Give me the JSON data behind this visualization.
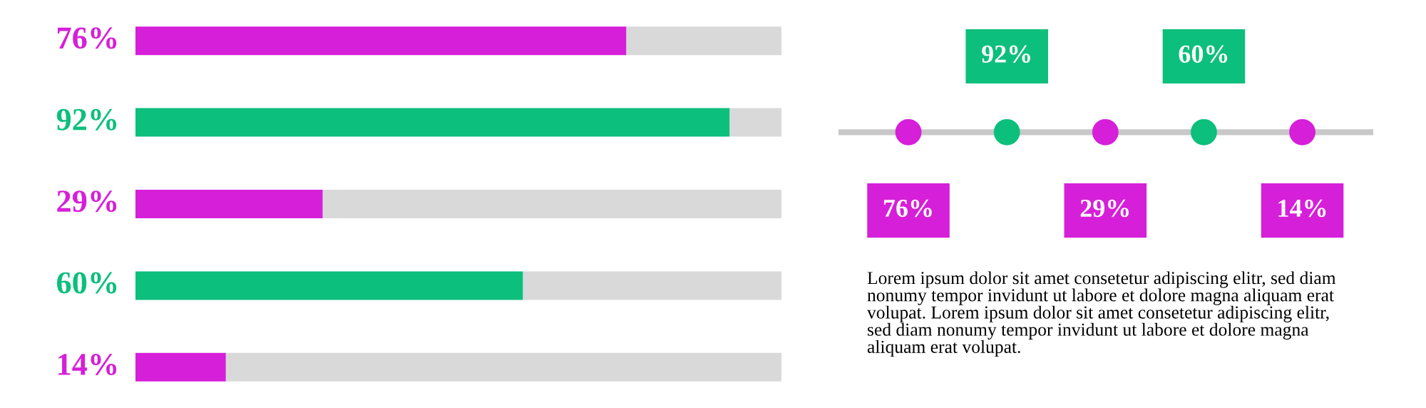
{
  "chart_data": [
    {
      "type": "bar",
      "orientation": "horizontal",
      "stacked": true,
      "xlim": [
        0,
        100
      ],
      "categories": [
        null,
        null,
        null,
        null,
        null
      ],
      "series": [
        {
          "colors": [
            "#d61fd9",
            "#0dbf7c",
            "#d61fd9",
            "#0dbf7c",
            "#d61fd9"
          ],
          "values": [
            76,
            92,
            29,
            60,
            14
          ],
          "value_labels": [
            "76%",
            "92%",
            "29%",
            "60%",
            "14%"
          ]
        },
        {
          "color": "#d9d9d9",
          "values": [
            24,
            8,
            71,
            40,
            86
          ]
        }
      ]
    },
    {
      "type": "other",
      "colors": [
        "#d61fd9",
        "#0dbf7c",
        "#d61fd9",
        "#0dbf7c",
        "#d61fd9"
      ],
      "annotations": [
        "76%",
        "92%",
        "29%",
        "60%",
        "14%",
        "Lorem ipsum dolor sit amet consetetur adipiscing elitr, sed diam nonumy tempor invidunt ut labore et dolore magna aliquam erat volupat. Lorem ipsum dolor sit amet consetetur adipiscing elitr, sed diam nonumy tempor invidunt ut labore et dolore magna aliquam erat volupat."
      ]
    }
  ]
}
